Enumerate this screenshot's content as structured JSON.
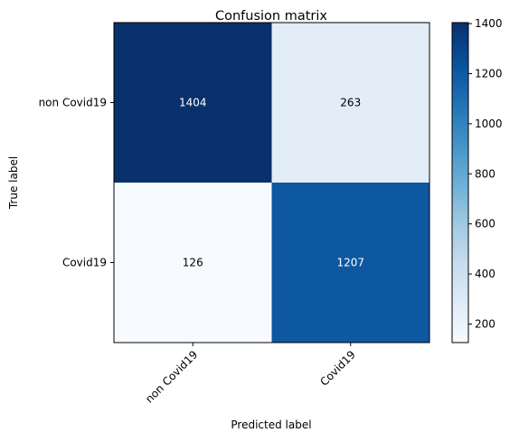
{
  "chart_data": {
    "type": "heatmap",
    "title": "Confusion matrix",
    "xlabel": "Predicted label",
    "ylabel": "True label",
    "x_categories": [
      "non Covid19",
      "Covid19"
    ],
    "y_categories": [
      "non Covid19",
      "Covid19"
    ],
    "values": [
      [
        1404,
        263
      ],
      [
        126,
        1207
      ]
    ],
    "colormap": "Blues",
    "color_range": [
      126,
      1404
    ],
    "colorbar_ticks": [
      200,
      400,
      600,
      800,
      1000,
      1200,
      1400
    ],
    "x_tick_rotation_deg": 45
  }
}
